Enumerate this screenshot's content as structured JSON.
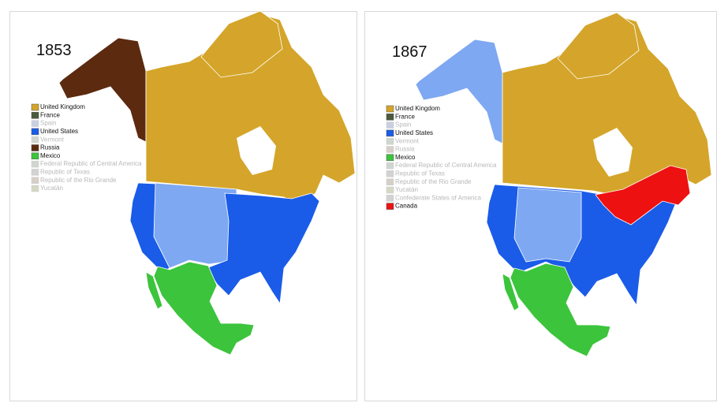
{
  "maps": [
    {
      "year": "1853",
      "legend": [
        {
          "label": "United Kingdom",
          "color": "#d4a52a",
          "active": true
        },
        {
          "label": "France",
          "color": "#4a5a3a",
          "active": true
        },
        {
          "label": "Spain",
          "color": "#c8cfe0",
          "active": false
        },
        {
          "label": "United States",
          "color": "#1a5ce8",
          "active": true
        },
        {
          "label": "Vermont",
          "color": "#cfd6cf",
          "active": false
        },
        {
          "label": "Russia",
          "color": "#5c2a0f",
          "active": true
        },
        {
          "label": "Mexico",
          "color": "#3cc43c",
          "active": true
        },
        {
          "label": "Federal Republic of Central America",
          "color": "#cfd6cf",
          "active": false
        },
        {
          "label": "Republic of Texas",
          "color": "#d2d2d2",
          "active": false
        },
        {
          "label": "Republic of the Rio Grande",
          "color": "#d6cfc8",
          "active": false
        },
        {
          "label": "Yucatán",
          "color": "#d4d8c4",
          "active": false
        }
      ]
    },
    {
      "year": "1867",
      "legend": [
        {
          "label": "United Kingdom",
          "color": "#d4a52a",
          "active": true
        },
        {
          "label": "France",
          "color": "#4a5a3a",
          "active": true
        },
        {
          "label": "Spain",
          "color": "#c8cfe0",
          "active": false
        },
        {
          "label": "United States",
          "color": "#1a5ce8",
          "active": true
        },
        {
          "label": "Vermont",
          "color": "#cfd6cf",
          "active": false
        },
        {
          "label": "Russia",
          "color": "#d8cfc8",
          "active": false
        },
        {
          "label": "Mexico",
          "color": "#3cc43c",
          "active": true
        },
        {
          "label": "Federal Republic of Central America",
          "color": "#cfd6cf",
          "active": false
        },
        {
          "label": "Republic of Texas",
          "color": "#d2d2d2",
          "active": false
        },
        {
          "label": "Republic of the Rio Grande",
          "color": "#d6cfc8",
          "active": false
        },
        {
          "label": "Yucatán",
          "color": "#d4d8c4",
          "active": false
        },
        {
          "label": "Confederate States of America",
          "color": "#d2d2d2",
          "active": false
        },
        {
          "label": "Canada",
          "color": "#ee1111",
          "active": true
        }
      ]
    }
  ]
}
